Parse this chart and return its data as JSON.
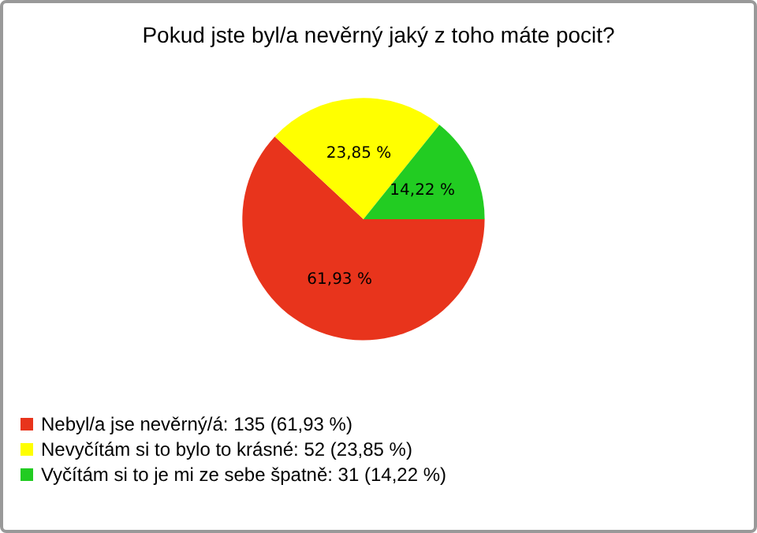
{
  "chart_data": {
    "type": "pie",
    "title": "Pokud jste byl/a nevěrný jaký z toho máte pocit?",
    "categories": [
      "Nebyl/a jse nevěrný/á: 135 (61,93 %)",
      "Nevyčítám si to bylo to krásné: 52 (23,85 %)",
      "Vyčítám si to je mi ze sebe špatně: 31 (14,22 %)"
    ],
    "values": [
      61.93,
      23.85,
      14.22
    ],
    "value_labels": [
      "61,93 %",
      "23,85 %",
      "14,22 %"
    ],
    "colors": [
      "#e8341c",
      "#ffff00",
      "#22cc22"
    ],
    "legend": "bottom left"
  }
}
